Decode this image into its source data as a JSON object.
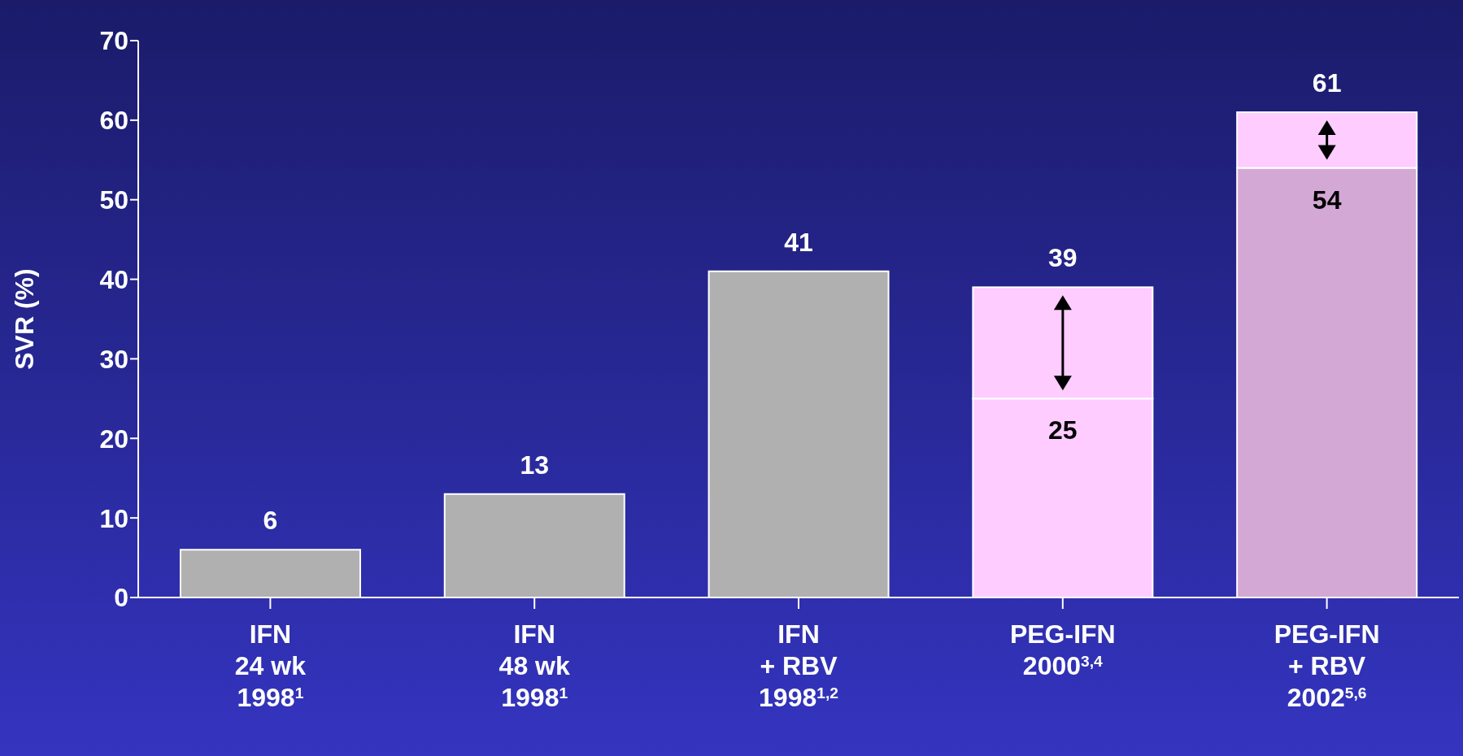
{
  "chart_data": {
    "type": "bar",
    "ylabel": "SVR (%)",
    "categories": [
      "IFN\n24 wk\n1998$^{1}$",
      "IFN\n48 wk\n1998$^{1}$",
      "IFN\n+ RBV\n1998$^{1,2}$",
      "PEG-IFN\n2000$^{3,4}$",
      "PEG-IFN\n+ RBV\n2002$^{5,6}$"
    ],
    "stacked": true,
    "series": [
      {
        "colors": [
          "#b0b0b0",
          "#b0b0b0",
          "#b0b0b0",
          "#ffccff",
          "#d4a8d4"
        ],
        "values": [
          6,
          13,
          41,
          25,
          54
        ],
        "value_labels": [
          null,
          null,
          null,
          "25",
          "54"
        ]
      },
      {
        "color": "#ffccff",
        "values": [
          null,
          null,
          null,
          14,
          7
        ]
      }
    ],
    "totals": [
      "6",
      "13",
      "41",
      "39",
      "61"
    ],
    "ylim": [
      0,
      70
    ],
    "yticks": [
      0,
      10,
      20,
      30,
      40,
      50,
      60,
      70
    ],
    "grid": false,
    "legend": false
  }
}
